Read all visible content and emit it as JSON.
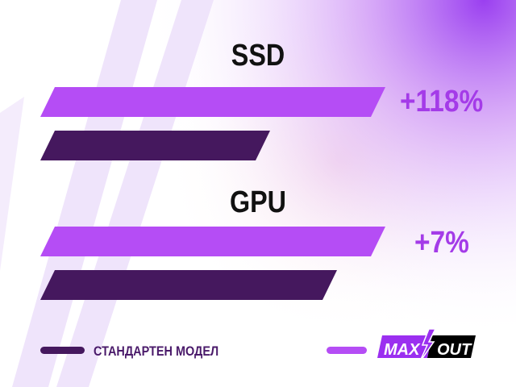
{
  "chart_data": {
    "type": "bar",
    "orientation": "horizontal",
    "categories": [
      "SSD",
      "GPU"
    ],
    "improvements": [
      "+118%",
      "+7%"
    ],
    "series": [
      {
        "name": "MAX OUT",
        "color": "#b54df5"
      },
      {
        "name": "СТАНДАРТЕН МОДЕЛ",
        "color": "#45185e"
      }
    ],
    "grid": false,
    "legend_placement": "bottom"
  },
  "legend": {
    "standard_label": "СТАНДАРТЕН МОДЕЛ",
    "maxout_logo": "MAX OUT"
  },
  "colors": {
    "accent": "#b54df5",
    "dark": "#45185e",
    "pct": "#a43be8"
  }
}
